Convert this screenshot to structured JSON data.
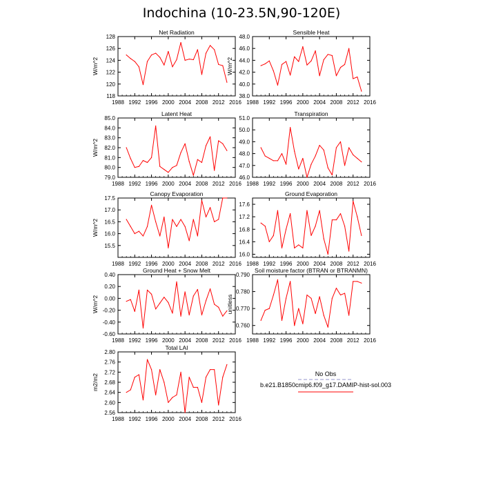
{
  "title": "Indochina (10-23.5N,90-120E)",
  "legend": {
    "obs_label": "No Obs",
    "model_label": "b.e21.B1850cmip6.f09_g17.DAMIP-hist-sol.003",
    "obs_color": "#a9a9d8",
    "model_color": "#ff0000"
  },
  "chart_data": [
    {
      "type": "line",
      "title": "Net Radiation",
      "ylabel": "W/m^2",
      "x": [
        1990,
        1991,
        1992,
        1993,
        1994,
        1995,
        1996,
        1997,
        1998,
        1999,
        2000,
        2001,
        2002,
        2003,
        2004,
        2005,
        2006,
        2007,
        2008,
        2009,
        2010,
        2011,
        2012,
        2013,
        2014
      ],
      "xlim": [
        1988,
        2016
      ],
      "xticks": [
        "1988",
        "1992",
        "1996",
        "2000",
        "2004",
        "2008",
        "2012",
        "2016"
      ],
      "ylim": [
        118,
        128
      ],
      "yticks": [
        "118",
        "120",
        "122",
        "124",
        "126",
        "128"
      ],
      "series": [
        {
          "values": [
            124.9,
            124.3,
            123.8,
            122.9,
            119.9,
            123.8,
            124.9,
            125.2,
            124.5,
            123.2,
            125.5,
            122.9,
            124.1,
            127.0,
            124.0,
            124.2,
            124.1,
            125.8,
            121.6,
            125.2,
            126.5,
            125.8,
            123.3,
            123.1,
            120.3
          ]
        }
      ]
    },
    {
      "type": "line",
      "title": "Sensible Heat",
      "ylabel": "W/m^2",
      "x": [
        1990,
        1991,
        1992,
        1993,
        1994,
        1995,
        1996,
        1997,
        1998,
        1999,
        2000,
        2001,
        2002,
        2003,
        2004,
        2005,
        2006,
        2007,
        2008,
        2009,
        2010,
        2011,
        2012,
        2013,
        2014
      ],
      "xlim": [
        1988,
        2016
      ],
      "xticks": [
        "1988",
        "1992",
        "1996",
        "2000",
        "2004",
        "2008",
        "2012",
        "2016"
      ],
      "ylim": [
        38.0,
        48.0
      ],
      "yticks": [
        "38.0",
        "40.0",
        "42.0",
        "44.0",
        "46.0",
        "48.0"
      ],
      "series": [
        {
          "values": [
            43.1,
            43.4,
            43.9,
            42.2,
            39.8,
            43.3,
            43.8,
            41.5,
            44.6,
            43.8,
            46.3,
            43.2,
            43.9,
            45.6,
            41.4,
            44.1,
            45.0,
            44.8,
            41.4,
            42.8,
            43.3,
            46.0,
            40.9,
            41.2,
            38.8
          ]
        }
      ]
    },
    {
      "type": "line",
      "title": "Latent Heat",
      "ylabel": "W/m^2",
      "x": [
        1990,
        1991,
        1992,
        1993,
        1994,
        1995,
        1996,
        1997,
        1998,
        1999,
        2000,
        2001,
        2002,
        2003,
        2004,
        2005,
        2006,
        2007,
        2008,
        2009,
        2010,
        2011,
        2012,
        2013,
        2014
      ],
      "xlim": [
        1988,
        2016
      ],
      "xticks": [
        "1988",
        "1992",
        "1996",
        "2000",
        "2004",
        "2008",
        "2012",
        "2016"
      ],
      "ylim": [
        79.0,
        85.0
      ],
      "yticks": [
        "79.0",
        "80.0",
        "81.0",
        "82.0",
        "83.0",
        "84.0",
        "85.0"
      ],
      "series": [
        {
          "values": [
            82.0,
            80.9,
            80.0,
            80.1,
            80.7,
            80.5,
            81.0,
            84.2,
            80.1,
            79.8,
            79.5,
            80.0,
            80.2,
            81.5,
            82.4,
            80.6,
            79.2,
            80.8,
            80.5,
            82.2,
            83.1,
            79.7,
            82.7,
            82.4,
            81.7
          ]
        }
      ]
    },
    {
      "type": "line",
      "title": "Transpiration",
      "ylabel": "",
      "x": [
        1990,
        1991,
        1992,
        1993,
        1994,
        1995,
        1996,
        1997,
        1998,
        1999,
        2000,
        2001,
        2002,
        2003,
        2004,
        2005,
        2006,
        2007,
        2008,
        2009,
        2010,
        2011,
        2012,
        2013,
        2014
      ],
      "xlim": [
        1988,
        2016
      ],
      "xticks": [
        "1988",
        "1992",
        "1996",
        "2000",
        "2004",
        "2008",
        "2012",
        "2016"
      ],
      "ylim": [
        46.0,
        51.0
      ],
      "yticks": [
        "46.0",
        "47.0",
        "48.0",
        "49.0",
        "50.0",
        "51.0"
      ],
      "series": [
        {
          "values": [
            48.5,
            47.8,
            47.6,
            47.4,
            47.4,
            48.0,
            47.1,
            50.2,
            48.2,
            46.7,
            47.6,
            46.0,
            47.1,
            47.8,
            48.7,
            48.3,
            46.8,
            46.2,
            48.5,
            49.0,
            47.0,
            48.5,
            47.9,
            47.6,
            47.3
          ]
        }
      ]
    },
    {
      "type": "line",
      "title": "Canopy Evaporation",
      "ylabel": "W/m^2",
      "x": [
        1990,
        1991,
        1992,
        1993,
        1994,
        1995,
        1996,
        1997,
        1998,
        1999,
        2000,
        2001,
        2002,
        2003,
        2004,
        2005,
        2006,
        2007,
        2008,
        2009,
        2010,
        2011,
        2012,
        2013,
        2014
      ],
      "xlim": [
        1988,
        2016
      ],
      "xticks": [
        "1988",
        "1992",
        "1996",
        "2000",
        "2004",
        "2008",
        "2012",
        "2016"
      ],
      "ylim": [
        15.0,
        17.5
      ],
      "yticks": [
        "15.5",
        "16.0",
        "16.5",
        "17.0",
        "17.5"
      ],
      "series": [
        {
          "values": [
            16.6,
            16.3,
            16.0,
            16.1,
            15.9,
            16.3,
            17.2,
            16.5,
            15.9,
            16.7,
            15.4,
            16.6,
            16.3,
            16.6,
            16.3,
            15.7,
            16.6,
            15.9,
            17.4,
            16.7,
            17.1,
            16.5,
            16.6,
            17.5,
            17.5
          ]
        }
      ]
    },
    {
      "type": "line",
      "title": "Ground Evaporation",
      "ylabel": "",
      "x": [
        1990,
        1991,
        1992,
        1993,
        1994,
        1995,
        1996,
        1997,
        1998,
        1999,
        2000,
        2001,
        2002,
        2003,
        2004,
        2005,
        2006,
        2007,
        2008,
        2009,
        2010,
        2011,
        2012,
        2013,
        2014
      ],
      "xlim": [
        1988,
        2016
      ],
      "xticks": [
        "1988",
        "1992",
        "1996",
        "2000",
        "2004",
        "2008",
        "2012",
        "2016"
      ],
      "ylim": [
        15.9,
        17.8
      ],
      "yticks": [
        "16.0",
        "16.4",
        "16.8",
        "17.2",
        "17.6"
      ],
      "series": [
        {
          "values": [
            17.0,
            16.9,
            16.4,
            16.6,
            17.4,
            16.2,
            16.8,
            17.3,
            16.2,
            16.3,
            16.2,
            17.4,
            16.6,
            16.9,
            17.4,
            16.5,
            16.0,
            17.1,
            17.1,
            17.3,
            16.9,
            16.1,
            17.7,
            17.2,
            16.6
          ]
        }
      ]
    },
    {
      "type": "line",
      "title": "Ground Heat + Snow Melt",
      "ylabel": "W/m^2",
      "x": [
        1990,
        1991,
        1992,
        1993,
        1994,
        1995,
        1996,
        1997,
        1998,
        1999,
        2000,
        2001,
        2002,
        2003,
        2004,
        2005,
        2006,
        2007,
        2008,
        2009,
        2010,
        2011,
        2012,
        2013,
        2014
      ],
      "xlim": [
        1988,
        2016
      ],
      "xticks": [
        "1988",
        "1992",
        "1996",
        "2000",
        "2004",
        "2008",
        "2012",
        "2016"
      ],
      "ylim": [
        -0.6,
        0.4
      ],
      "yticks": [
        "-0.60",
        "-0.40",
        "-0.20",
        "0.00",
        "0.20",
        "0.40"
      ],
      "series": [
        {
          "values": [
            -0.05,
            -0.02,
            -0.22,
            0.14,
            -0.5,
            0.14,
            0.07,
            -0.18,
            -0.08,
            0.02,
            -0.07,
            -0.25,
            0.28,
            -0.3,
            0.11,
            -0.28,
            0.04,
            0.15,
            -0.28,
            -0.04,
            0.16,
            -0.1,
            -0.15,
            -0.3,
            -0.21
          ]
        }
      ]
    },
    {
      "type": "line",
      "title": "Soil moisture factor (BTRAN or BTRANMN)",
      "ylabel": "unitless",
      "x": [
        1990,
        1991,
        1992,
        1993,
        1994,
        1995,
        1996,
        1997,
        1998,
        1999,
        2000,
        2001,
        2002,
        2003,
        2004,
        2005,
        2006,
        2007,
        2008,
        2009,
        2010,
        2011,
        2012,
        2013,
        2014
      ],
      "xlim": [
        1988,
        2016
      ],
      "xticks": [
        "1988",
        "1992",
        "1996",
        "2000",
        "2004",
        "2008",
        "2012",
        "2016"
      ],
      "ylim": [
        0.755,
        0.79
      ],
      "yticks": [
        "0.760",
        "0.770",
        "0.780",
        "0.790"
      ],
      "series": [
        {
          "values": [
            0.763,
            0.769,
            0.77,
            0.778,
            0.787,
            0.763,
            0.776,
            0.786,
            0.76,
            0.77,
            0.761,
            0.778,
            0.776,
            0.767,
            0.777,
            0.766,
            0.759,
            0.776,
            0.782,
            0.778,
            0.779,
            0.766,
            0.786,
            0.786,
            0.785
          ]
        }
      ]
    },
    {
      "type": "line",
      "title": "Total LAI",
      "ylabel": "m2/m2",
      "x": [
        1990,
        1991,
        1992,
        1993,
        1994,
        1995,
        1996,
        1997,
        1998,
        1999,
        2000,
        2001,
        2002,
        2003,
        2004,
        2005,
        2006,
        2007,
        2008,
        2009,
        2010,
        2011,
        2012,
        2013,
        2014
      ],
      "xlim": [
        1988,
        2016
      ],
      "xticks": [
        "1988",
        "1992",
        "1996",
        "2000",
        "2004",
        "2008",
        "2012",
        "2016"
      ],
      "ylim": [
        2.56,
        2.8
      ],
      "yticks": [
        "2.56",
        "2.60",
        "2.64",
        "2.68",
        "2.72",
        "2.76",
        "2.80"
      ],
      "series": [
        {
          "values": [
            2.64,
            2.65,
            2.7,
            2.71,
            2.61,
            2.77,
            2.73,
            2.63,
            2.73,
            2.68,
            2.6,
            2.62,
            2.63,
            2.72,
            2.56,
            2.7,
            2.66,
            2.66,
            2.6,
            2.7,
            2.73,
            2.73,
            2.59,
            2.7,
            2.75
          ]
        }
      ]
    }
  ]
}
